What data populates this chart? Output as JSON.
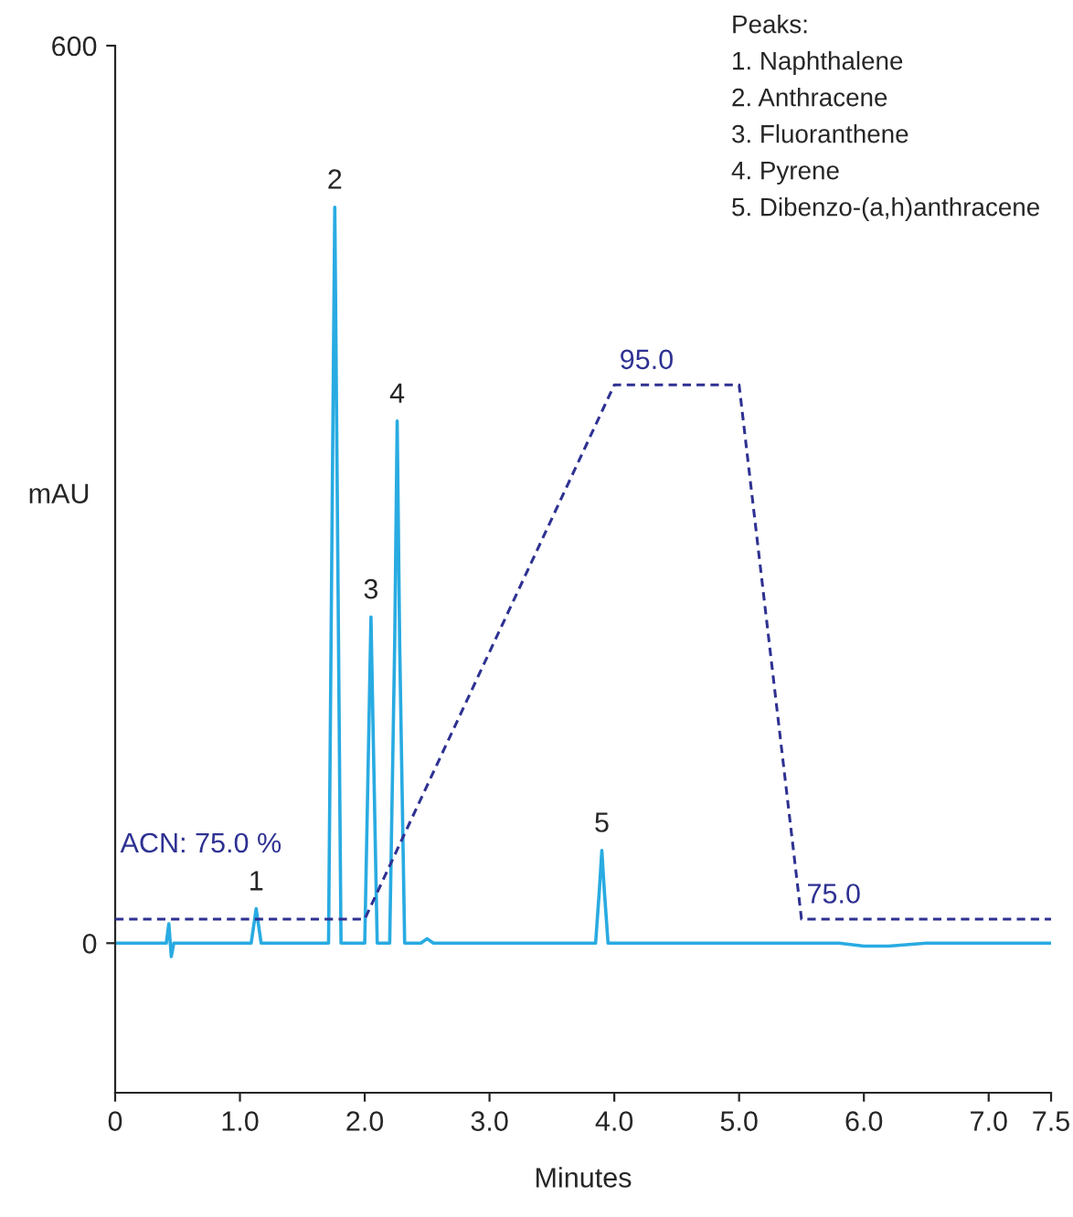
{
  "chart_data": {
    "type": "line",
    "xlabel": "Minutes",
    "ylabel": "mAU",
    "xlim": [
      0,
      7.5
    ],
    "xticks": [
      0,
      {
        "value": 1,
        "label": "1.0"
      },
      {
        "value": 2,
        "label": "2.0"
      },
      {
        "value": 3,
        "label": "3.0"
      },
      {
        "value": 4,
        "label": "4.0"
      },
      {
        "value": 5,
        "label": "5.0"
      },
      {
        "value": 6,
        "label": "6.0"
      },
      {
        "value": 7,
        "label": "7.0"
      },
      7.5
    ],
    "ylim": [
      -100,
      600
    ],
    "yticks": [
      0,
      600
    ],
    "y2lim": [
      68.5,
      107.7
    ],
    "grid": false,
    "legend": false,
    "series": [
      {
        "color": "#29abe2",
        "x": [
          0,
          0.3,
          0.41,
          0.43,
          0.45,
          0.47,
          0.6,
          0.8,
          1.0,
          1.09,
          1.13,
          1.17,
          1.5,
          1.71,
          1.74,
          1.76,
          1.78,
          1.81,
          1.95,
          2.0,
          2.03,
          2.05,
          2.07,
          2.1,
          2.2,
          2.24,
          2.26,
          2.28,
          2.32,
          2.45,
          2.5,
          2.55,
          3.0,
          3.5,
          3.85,
          3.88,
          3.9,
          3.92,
          3.95,
          4.5,
          5.0,
          5.5,
          5.8,
          6.0,
          6.2,
          6.5,
          7.0,
          7.5
        ],
        "values": [
          0,
          0,
          0,
          13,
          -9,
          0,
          0,
          0,
          0,
          0,
          23,
          0,
          0,
          0,
          300,
          492,
          300,
          0,
          0,
          0,
          130,
          218,
          130,
          0,
          0,
          200,
          349,
          200,
          0,
          0,
          3,
          0,
          0,
          0,
          0,
          35,
          62,
          35,
          0,
          0,
          0,
          0,
          0,
          -2,
          -2,
          0,
          0,
          0
        ]
      },
      {
        "color": "#2e3192",
        "axis": "y2",
        "line_style": "dashed",
        "x": [
          0,
          2.0,
          4.0,
          5.0,
          5.5,
          7.5
        ],
        "values": [
          75,
          75,
          95,
          95,
          75,
          75
        ],
        "value_labels": [
          "ACN: 75.0 %",
          null,
          "95.0",
          null,
          "75.0",
          null
        ]
      }
    ],
    "annotations": [
      {
        "text": "1",
        "x": 1.13,
        "y": 23
      },
      {
        "text": "2",
        "x": 1.76,
        "y": 492
      },
      {
        "text": "3",
        "x": 2.05,
        "y": 218
      },
      {
        "text": "4",
        "x": 2.26,
        "y": 349
      },
      {
        "text": "5",
        "x": 3.9,
        "y": 62
      },
      "Peaks:",
      "1. Naphthalene",
      "2. Anthracene",
      "3. Fluoranthene",
      "4. Pyrene",
      "5. Dibenzo-(a,h)anthracene"
    ]
  }
}
